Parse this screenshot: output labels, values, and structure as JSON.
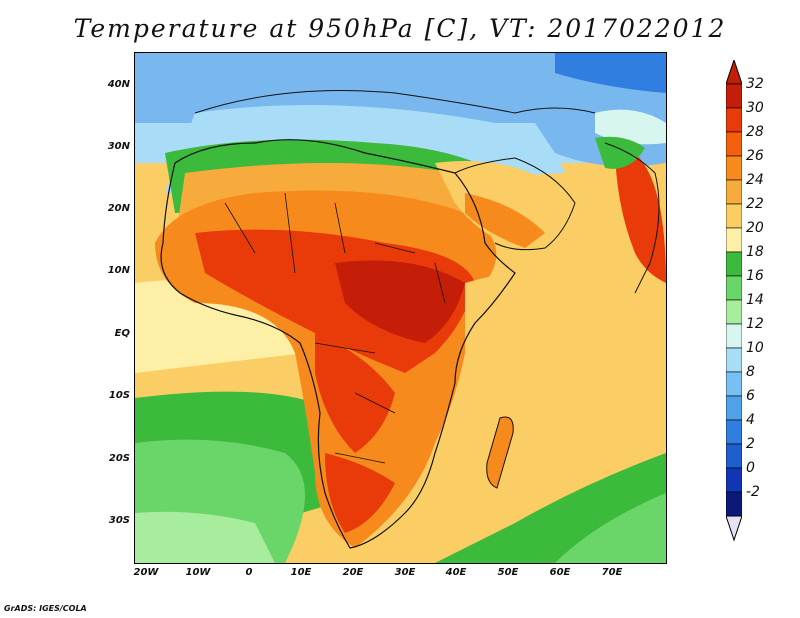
{
  "title": "Temperature at 950hPa [C], VT: 2017022012",
  "credit": "GrADS: IGES/COLA",
  "axes": {
    "lat_labels": [
      "40N",
      "30N",
      "20N",
      "10N",
      "EQ",
      "10S",
      "20S",
      "30S"
    ],
    "lon_labels": [
      "20W",
      "10W",
      "0",
      "10E",
      "20E",
      "30E",
      "40E",
      "50E",
      "60E",
      "70E"
    ]
  },
  "colorbar": {
    "labels": [
      "32",
      "30",
      "28",
      "26",
      "24",
      "22",
      "20",
      "18",
      "16",
      "14",
      "12",
      "10",
      "8",
      "6",
      "4",
      "2",
      "0",
      "-2"
    ],
    "colors": [
      "#c41e08",
      "#e93a0a",
      "#f45f0e",
      "#f68a1c",
      "#f7ab3c",
      "#fbcd65",
      "#fdf0a6",
      "#3cba3b",
      "#6ad66a",
      "#a8ec9d",
      "#d8f6f0",
      "#a8dcf7",
      "#78c0f3",
      "#4fa2ea",
      "#2f7ee0",
      "#1f5ecf",
      "#1036b4",
      "#0b1a78"
    ],
    "end_colors": {
      "top": "#c41e08",
      "bottom": "#e6e2f6"
    }
  },
  "map": {
    "region": "Africa and Middle East",
    "ocean_colors": {
      "cold": "#78b8ee",
      "mid": "#3cba3b",
      "warm": "#fdf0a6",
      "hot": "#fbcd65"
    },
    "land_colors": {
      "hot": "#e93a0a",
      "warm": "#f68a1c",
      "cool": "#6ad66a",
      "cold": "#78c0f3"
    }
  }
}
